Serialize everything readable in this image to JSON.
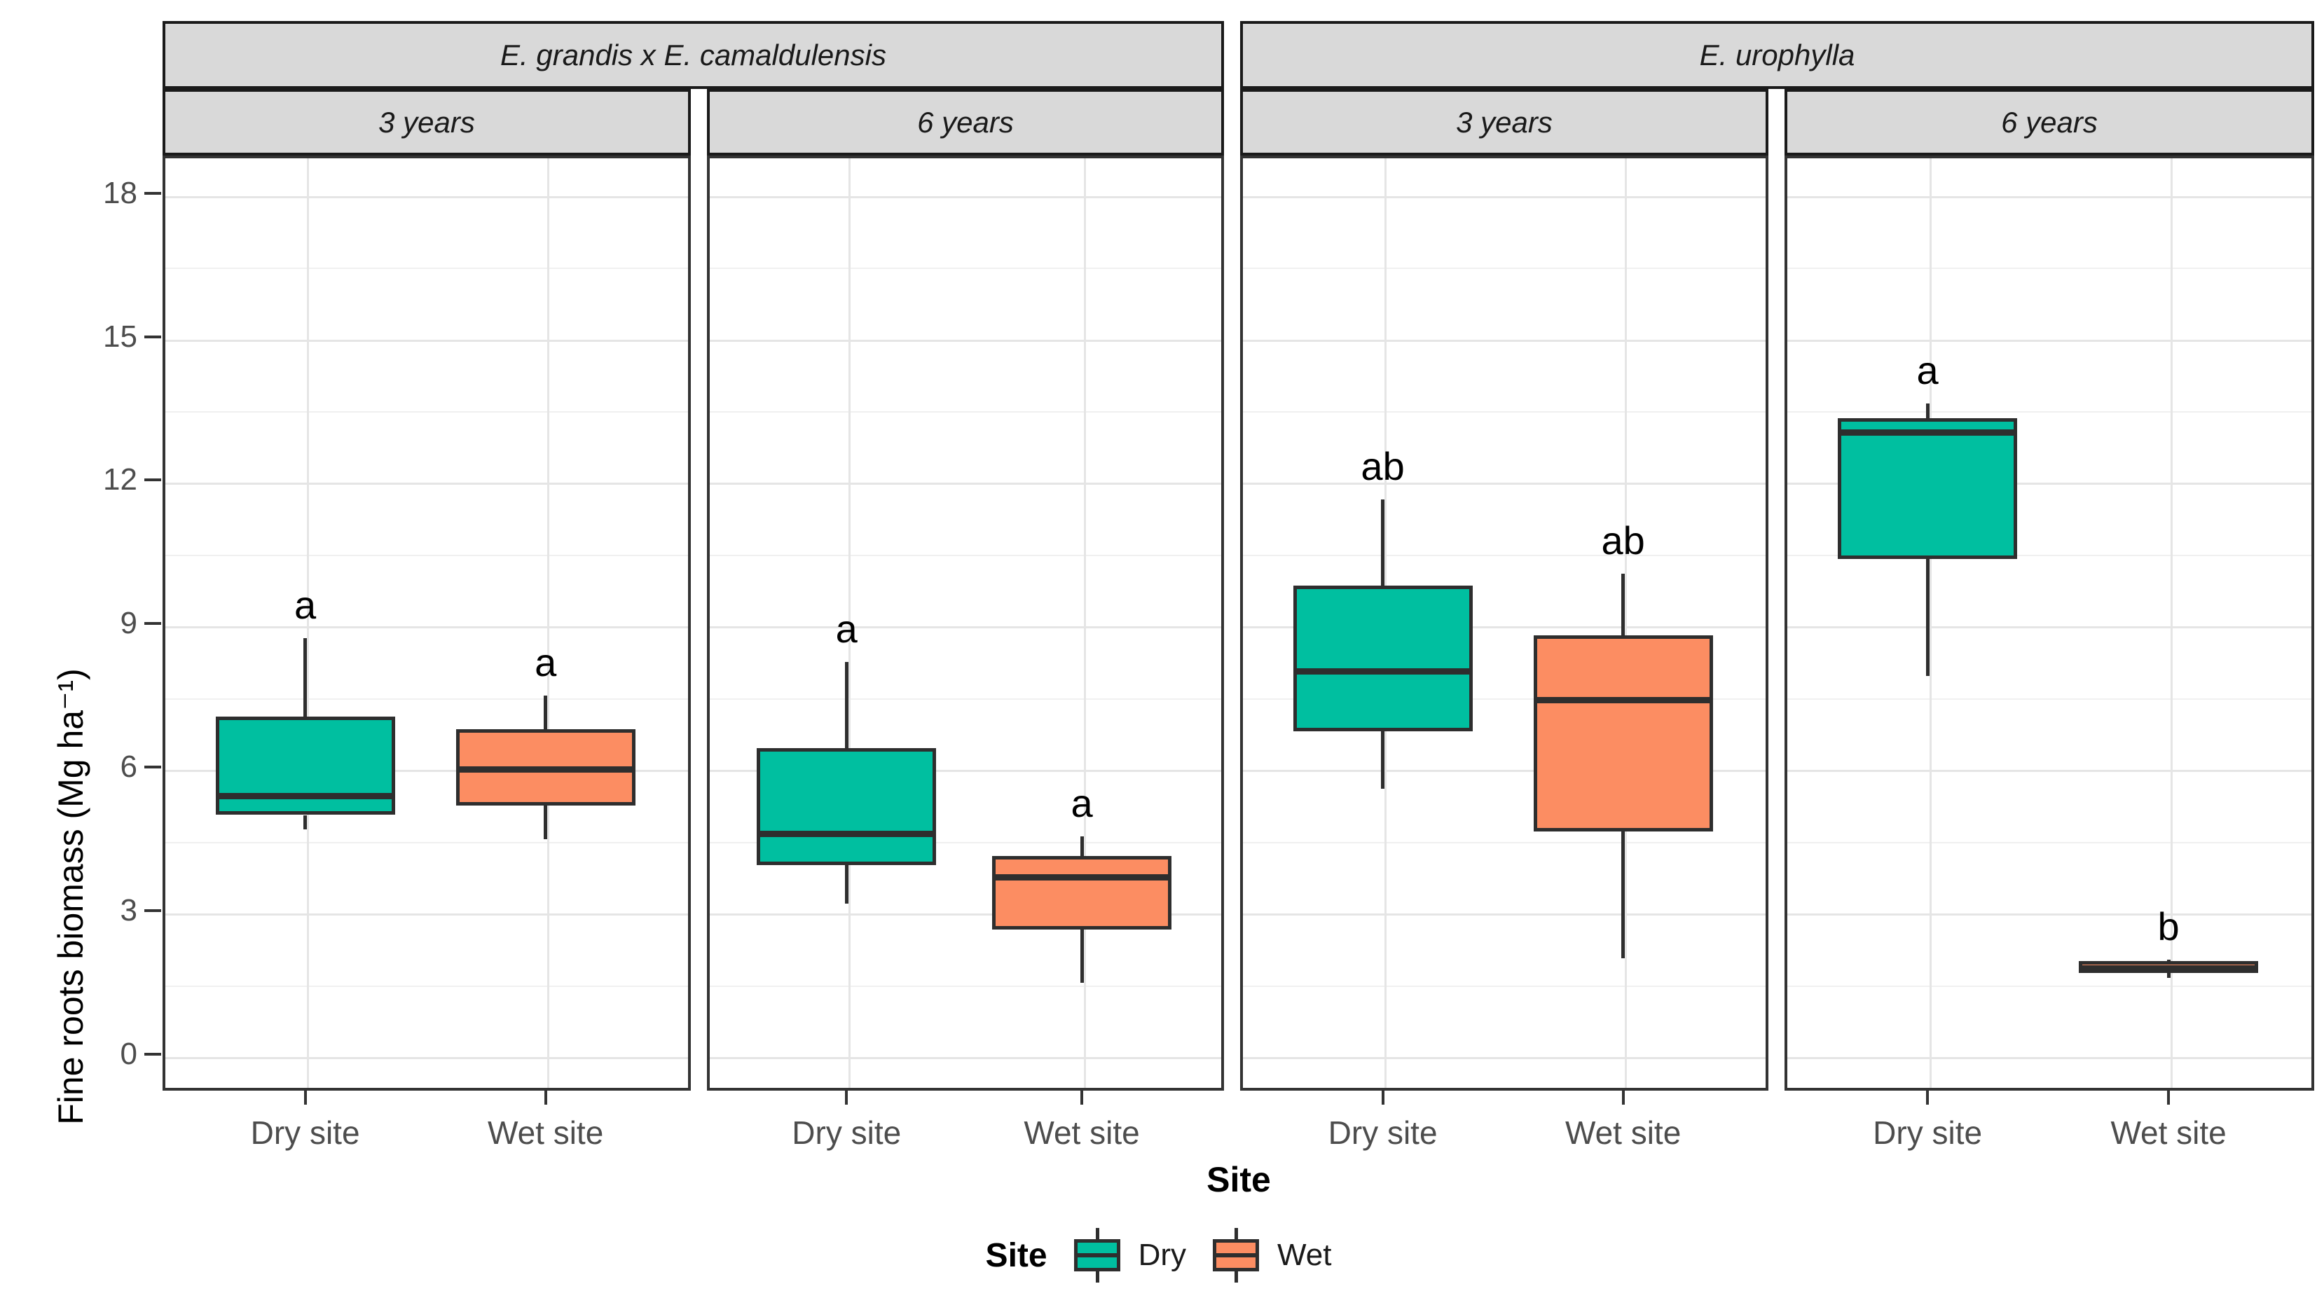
{
  "chart_data": {
    "type": "boxplot",
    "title": "",
    "ylabel": "Fine roots biomass (Mg ha⁻¹)",
    "xlabel": "Site",
    "ylim": [
      -0.8,
      18.8
    ],
    "yticks": [
      0,
      3,
      6,
      9,
      12,
      15,
      18
    ],
    "yticks_minor": [
      1.5,
      4.5,
      7.5,
      10.5,
      13.5,
      16.5
    ],
    "x_categories": [
      "Dry site",
      "Wet site"
    ],
    "grid": "major and minor horizontal gridlines, vertical major at category centers, light gray on white",
    "legend_position": "bottom",
    "facet_row_species": [
      "E. grandis x E. camaldulensis",
      "E. urophylla"
    ],
    "facet_col_ages": [
      "3 years",
      "6 years"
    ],
    "facets": [
      {
        "species": "E. grandis x E. camaldulensis",
        "age": "3 years",
        "boxes": [
          {
            "site": "Dry site",
            "group": "Dry",
            "whisker_low": 4.7,
            "q1": 5.0,
            "median": 5.4,
            "q3": 7.05,
            "whisker_high": 8.7,
            "sig_letter": "a"
          },
          {
            "site": "Wet site",
            "group": "Wet",
            "whisker_low": 4.5,
            "q1": 5.2,
            "median": 5.95,
            "q3": 6.8,
            "whisker_high": 7.5,
            "sig_letter": "a"
          }
        ]
      },
      {
        "species": "E. grandis x E. camaldulensis",
        "age": "6 years",
        "boxes": [
          {
            "site": "Dry site",
            "group": "Dry",
            "whisker_low": 3.15,
            "q1": 3.95,
            "median": 4.6,
            "q3": 6.4,
            "whisker_high": 8.2,
            "sig_letter": "a"
          },
          {
            "site": "Wet site",
            "group": "Wet",
            "whisker_low": 1.5,
            "q1": 2.6,
            "median": 3.7,
            "q3": 4.15,
            "whisker_high": 4.55,
            "sig_letter": "a"
          }
        ]
      },
      {
        "species": "E. urophylla",
        "age": "3 years",
        "boxes": [
          {
            "site": "Dry site",
            "group": "Dry",
            "whisker_low": 5.55,
            "q1": 6.75,
            "median": 8.0,
            "q3": 9.8,
            "whisker_high": 11.6,
            "sig_letter": "ab"
          },
          {
            "site": "Wet site",
            "group": "Wet",
            "whisker_low": 2.0,
            "q1": 4.65,
            "median": 7.4,
            "q3": 8.75,
            "whisker_high": 10.05,
            "sig_letter": "ab"
          }
        ]
      },
      {
        "species": "E. urophylla",
        "age": "6 years",
        "boxes": [
          {
            "site": "Dry site",
            "group": "Dry",
            "whisker_low": 7.9,
            "q1": 10.35,
            "median": 13.0,
            "q3": 13.3,
            "whisker_high": 13.6,
            "sig_letter": "a"
          },
          {
            "site": "Wet site",
            "group": "Wet",
            "whisker_low": 1.6,
            "q1": 1.7,
            "median": 1.8,
            "q3": 1.95,
            "whisker_high": 1.98,
            "sig_letter": "b"
          }
        ]
      }
    ]
  },
  "legend": {
    "title": "Site",
    "items": [
      {
        "label": "Dry",
        "color": "#00BFA0"
      },
      {
        "label": "Wet",
        "color": "#FC8D62"
      }
    ]
  },
  "colors": {
    "dry_fill": "#00BFA0",
    "wet_fill": "#FC8D62",
    "box_stroke": "#2E2E2E",
    "panel_border": "#333333",
    "strip_fill": "#D9D9D9",
    "strip_border": "#1A1A1A",
    "grid_major": "#E5E5E5",
    "grid_minor": "#F0F0F0",
    "tick_label": "#4D4D4D",
    "tick_mark": "#333333"
  },
  "axes": {
    "y_title": "Fine roots biomass (Mg ha⁻¹)",
    "x_title": "Site"
  }
}
